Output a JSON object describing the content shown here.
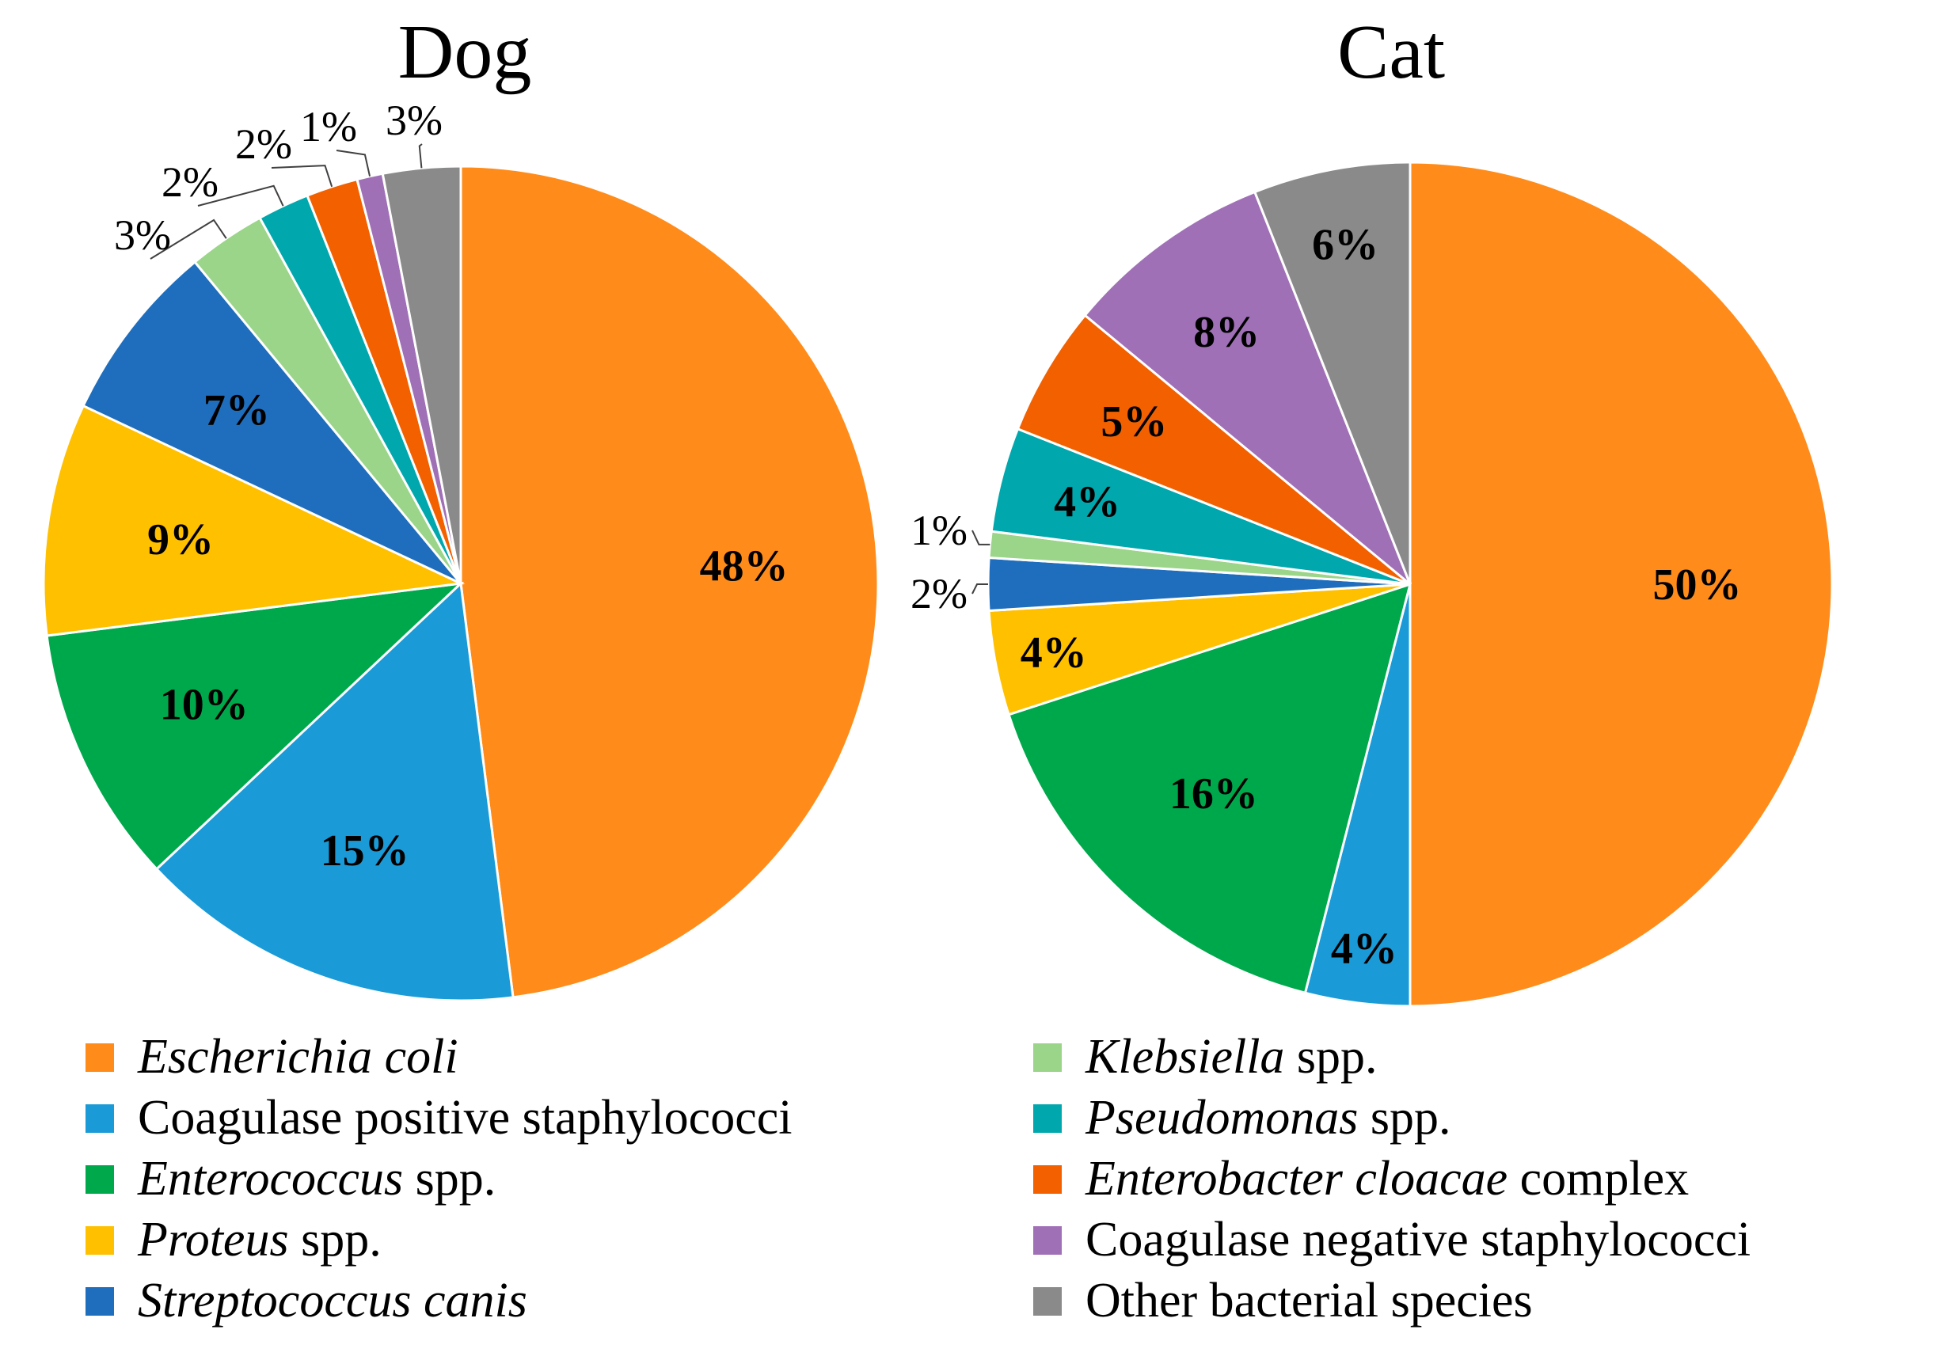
{
  "chart_data": [
    {
      "type": "pie",
      "title": "Dog",
      "slices": [
        {
          "category": "Escherichia coli",
          "value": 48,
          "label": "48%"
        },
        {
          "category": "Coagulase positive staphylococci",
          "value": 15,
          "label": "15%"
        },
        {
          "category": "Enterococcus spp.",
          "value": 10,
          "label": "10%"
        },
        {
          "category": "Proteus spp.",
          "value": 9,
          "label": "9%"
        },
        {
          "category": "Streptococcus canis",
          "value": 7,
          "label": "7%"
        },
        {
          "category": "Klebsiella spp.",
          "value": 3,
          "label": "3%"
        },
        {
          "category": "Pseudomonas spp.",
          "value": 2,
          "label": "2%"
        },
        {
          "category": "Enterobacter cloacae complex",
          "value": 2,
          "label": "2%"
        },
        {
          "category": "Coagulase negative staphylococci",
          "value": 1,
          "label": "1%"
        },
        {
          "category": "Other bacterial species",
          "value": 3,
          "label": "3%"
        }
      ]
    },
    {
      "type": "pie",
      "title": "Cat",
      "slices": [
        {
          "category": "Escherichia coli",
          "value": 50,
          "label": "50%"
        },
        {
          "category": "Coagulase positive staphylococci",
          "value": 4,
          "label": "4%"
        },
        {
          "category": "Enterococcus spp.",
          "value": 16,
          "label": "16%"
        },
        {
          "category": "Proteus spp.",
          "value": 4,
          "label": "4%"
        },
        {
          "category": "Streptococcus canis",
          "value": 2,
          "label": "2%"
        },
        {
          "category": "Klebsiella spp.",
          "value": 1,
          "label": "1%"
        },
        {
          "category": "Pseudomonas spp.",
          "value": 4,
          "label": "4%"
        },
        {
          "category": "Enterobacter cloacae complex",
          "value": 5,
          "label": "5%"
        },
        {
          "category": "Coagulase negative staphylococci",
          "value": 8,
          "label": "8%"
        },
        {
          "category": "Other bacterial species",
          "value": 6,
          "label": "6%"
        }
      ]
    }
  ],
  "legend": [
    {
      "italic": "Escherichia coli",
      "plain": "",
      "color": "#FF8C1A"
    },
    {
      "italic": "",
      "plain": "Coagulase positive staphylococci",
      "color": "#1A9BD7"
    },
    {
      "italic": "Enterococcus",
      "plain": " spp.",
      "color": "#00A84C"
    },
    {
      "italic": "Proteus",
      "plain": " spp.",
      "color": "#FFC000"
    },
    {
      "italic": "Streptococcus canis",
      "plain": "",
      "color": "#1F6EBD"
    },
    {
      "italic": "Klebsiella",
      "plain": " spp.",
      "color": "#9AD589"
    },
    {
      "italic": "Pseudomonas",
      "plain": " spp.",
      "color": "#00A8AE"
    },
    {
      "italic": "Enterobacter cloacae",
      "plain": " complex",
      "color": "#F26000"
    },
    {
      "italic": "",
      "plain": "Coagulase negative staphylococci",
      "color": "#A070B7"
    },
    {
      "italic": "",
      "plain": "Other bacterial species",
      "color": "#8A8A8A"
    }
  ],
  "slice_colors": [
    "#FF8C1A",
    "#1A9BD7",
    "#00A84C",
    "#FFC000",
    "#1F6EBD",
    "#9AD589",
    "#00A8AE",
    "#F26000",
    "#A070B7",
    "#8A8A8A"
  ]
}
